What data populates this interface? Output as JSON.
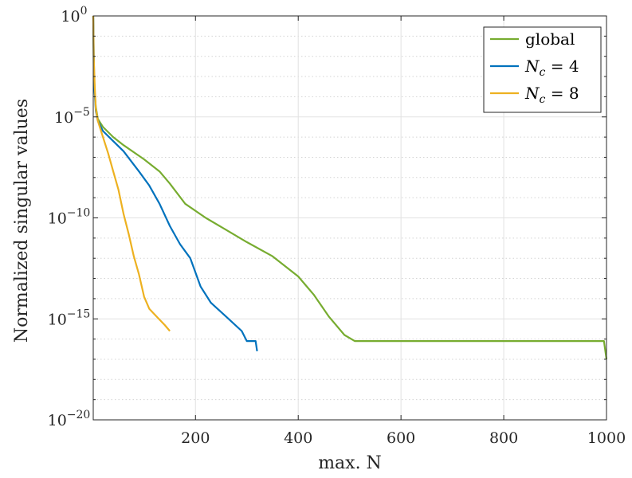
{
  "chart_data": {
    "type": "line",
    "xlabel": "max. N",
    "ylabel": "Normalized singular values",
    "xlim": [
      1,
      1000
    ],
    "ylim": [
      1e-20,
      1
    ],
    "yscale": "log",
    "grid": "on, with minor log gridlines",
    "legend_position": "top-right",
    "x_ticks": [
      {
        "value": 200,
        "label": "200"
      },
      {
        "value": 400,
        "label": "400"
      },
      {
        "value": 600,
        "label": "600"
      },
      {
        "value": 800,
        "label": "800"
      },
      {
        "value": 1000,
        "label": "1000"
      }
    ],
    "y_ticks": [
      {
        "exp": 0,
        "base": "10",
        "sup": "0"
      },
      {
        "exp": -5,
        "base": "10",
        "sup": "−5"
      },
      {
        "exp": -10,
        "base": "10",
        "sup": "−10"
      },
      {
        "exp": -15,
        "base": "10",
        "sup": "−15"
      },
      {
        "exp": -20,
        "base": "10",
        "sup": "−20"
      }
    ],
    "series": [
      {
        "name": "global",
        "legend": {
          "plain": "global"
        },
        "color": "#77AC30",
        "points": [
          [
            1,
            0
          ],
          [
            2,
            -2.5
          ],
          [
            4,
            -3.8
          ],
          [
            6,
            -4.5
          ],
          [
            10,
            -5.1
          ],
          [
            20,
            -5.5
          ],
          [
            40,
            -6.0
          ],
          [
            60,
            -6.4
          ],
          [
            100,
            -7.1
          ],
          [
            130,
            -7.7
          ],
          [
            150,
            -8.3
          ],
          [
            180,
            -9.3
          ],
          [
            220,
            -10.0
          ],
          [
            260,
            -10.6
          ],
          [
            300,
            -11.2
          ],
          [
            350,
            -11.9
          ],
          [
            400,
            -12.9
          ],
          [
            430,
            -13.8
          ],
          [
            460,
            -14.9
          ],
          [
            490,
            -15.8
          ],
          [
            510,
            -16.1
          ],
          [
            520,
            -16.1
          ],
          [
            995,
            -16.1
          ],
          [
            1000,
            -17.0
          ]
        ]
      },
      {
        "name": "N_c = 4",
        "legend": {
          "math": "N",
          "sub": "c",
          "rest": " = 4"
        },
        "color": "#0072BD",
        "points": [
          [
            1,
            0
          ],
          [
            3,
            -3.5
          ],
          [
            6,
            -4.7
          ],
          [
            10,
            -5.2
          ],
          [
            20,
            -5.7
          ],
          [
            40,
            -6.2
          ],
          [
            60,
            -6.7
          ],
          [
            90,
            -7.7
          ],
          [
            110,
            -8.4
          ],
          [
            130,
            -9.3
          ],
          [
            150,
            -10.4
          ],
          [
            170,
            -11.3
          ],
          [
            190,
            -12.0
          ],
          [
            210,
            -13.4
          ],
          [
            230,
            -14.2
          ],
          [
            260,
            -14.9
          ],
          [
            290,
            -15.6
          ],
          [
            300,
            -16.1
          ],
          [
            310,
            -16.1
          ],
          [
            317,
            -16.1
          ],
          [
            320,
            -16.6
          ]
        ]
      },
      {
        "name": "N_c = 8",
        "legend": {
          "math": "N",
          "sub": "c",
          "rest": " = 8"
        },
        "color": "#EDB120",
        "points": [
          [
            1,
            0
          ],
          [
            2,
            -2.0
          ],
          [
            4,
            -3.5
          ],
          [
            6,
            -4.6
          ],
          [
            10,
            -5.2
          ],
          [
            20,
            -6.0
          ],
          [
            30,
            -6.8
          ],
          [
            40,
            -7.7
          ],
          [
            50,
            -8.6
          ],
          [
            60,
            -9.8
          ],
          [
            70,
            -10.8
          ],
          [
            80,
            -11.9
          ],
          [
            90,
            -12.8
          ],
          [
            100,
            -13.9
          ],
          [
            110,
            -14.5
          ],
          [
            125,
            -14.9
          ],
          [
            140,
            -15.3
          ],
          [
            150,
            -15.6
          ]
        ]
      }
    ]
  }
}
